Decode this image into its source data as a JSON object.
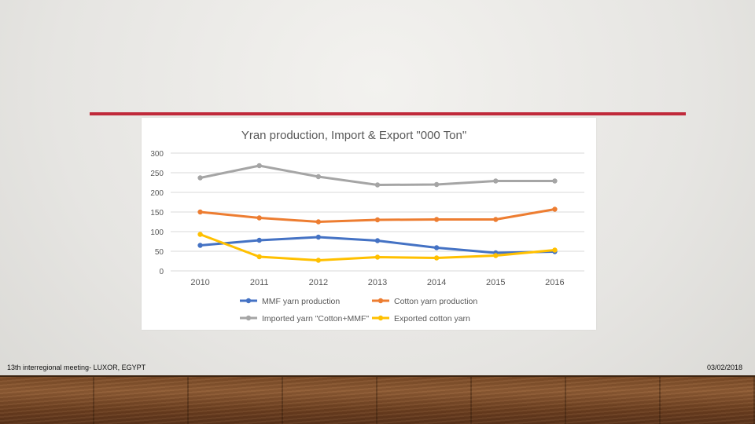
{
  "slide": {
    "footer_left": "13th interregional meeting- LUXOR, EGYPT",
    "footer_right": "03/02/2018",
    "accent_color": "#c0293a"
  },
  "chart_data": {
    "type": "line",
    "title": "Yran production, Import & Export \"000 Ton\"",
    "xlabel": "",
    "ylabel": "",
    "categories": [
      "2010",
      "2011",
      "2012",
      "2013",
      "2014",
      "2015",
      "2016"
    ],
    "ylim": [
      0,
      300
    ],
    "yticks": [
      0,
      50,
      100,
      150,
      200,
      250,
      300
    ],
    "grid": true,
    "legend_position": "bottom",
    "series": [
      {
        "name": "MMF yarn production",
        "color": "#4472c4",
        "values": [
          65,
          78,
          86,
          77,
          59,
          46,
          49
        ]
      },
      {
        "name": "Cotton yarn production",
        "color": "#ed7d31",
        "values": [
          150,
          135,
          125,
          130,
          131,
          131,
          157
        ]
      },
      {
        "name": "Imported yarn \"Cotton+MMF\"",
        "color": "#a5a5a5",
        "values": [
          237,
          268,
          240,
          219,
          220,
          229,
          229
        ]
      },
      {
        "name": "Exported cotton yarn",
        "color": "#ffc000",
        "values": [
          93,
          36,
          27,
          35,
          33,
          39,
          53
        ]
      }
    ]
  }
}
